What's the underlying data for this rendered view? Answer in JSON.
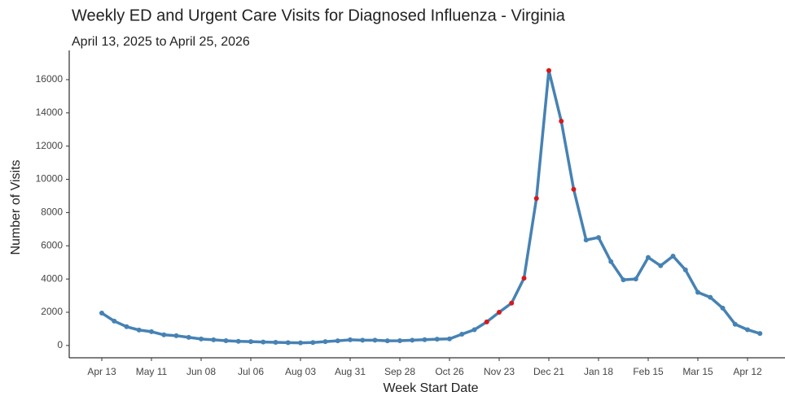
{
  "chart_data": {
    "type": "line",
    "title": "Weekly ED and Urgent Care Visits for Diagnosed Influenza - Virginia",
    "subtitle": "April 13, 2025 to April 25, 2026",
    "x_label": "Week Start Date",
    "y_label": "Number of Visits",
    "categories": [
      "Apr 13",
      null,
      null,
      null,
      "May 11",
      null,
      null,
      null,
      "Jun 08",
      null,
      null,
      null,
      "Jul 06",
      null,
      null,
      null,
      "Aug 03",
      null,
      null,
      null,
      "Aug 31",
      null,
      null,
      null,
      "Sep 28",
      null,
      null,
      null,
      "Oct 26",
      null,
      null,
      null,
      "Nov 23",
      null,
      null,
      null,
      "Dec 21",
      null,
      null,
      null,
      "Jan 18",
      null,
      null,
      null,
      "Feb 15",
      null,
      null,
      null,
      "Mar 15",
      null,
      null,
      null,
      "Apr 12",
      null
    ],
    "series": [
      {
        "name": "Visits",
        "color": "#4682b4",
        "values": [
          1950,
          1470,
          1130,
          930,
          830,
          640,
          590,
          490,
          390,
          340,
          290,
          250,
          230,
          210,
          190,
          170,
          160,
          180,
          230,
          280,
          340,
          320,
          320,
          280,
          290,
          320,
          350,
          380,
          400,
          680,
          950,
          1420,
          2000,
          2550,
          4050,
          8850,
          16550,
          13500,
          9400,
          6350,
          6500,
          5050,
          3950,
          4000,
          5300,
          4800,
          5380,
          4550,
          3200,
          2900,
          2250,
          1280,
          950,
          720
        ],
        "point_colors": [
          "#4682b4",
          "#4682b4",
          "#4682b4",
          "#4682b4",
          "#4682b4",
          "#4682b4",
          "#4682b4",
          "#4682b4",
          "#4682b4",
          "#4682b4",
          "#4682b4",
          "#4682b4",
          "#4682b4",
          "#4682b4",
          "#4682b4",
          "#4682b4",
          "#4682b4",
          "#4682b4",
          "#4682b4",
          "#4682b4",
          "#4682b4",
          "#4682b4",
          "#4682b4",
          "#4682b4",
          "#4682b4",
          "#4682b4",
          "#4682b4",
          "#4682b4",
          "#4682b4",
          "#4682b4",
          "#4682b4",
          "#d7191c",
          "#d7191c",
          "#d7191c",
          "#d7191c",
          "#d7191c",
          "#d7191c",
          "#d7191c",
          "#d7191c",
          "#4682b4",
          "#4682b4",
          "#4682b4",
          "#4682b4",
          "#4682b4",
          "#4682b4",
          "#4682b4",
          "#4682b4",
          "#4682b4",
          "#4682b4",
          "#4682b4",
          "#4682b4",
          "#4682b4",
          "#4682b4",
          "#4682b4"
        ]
      }
    ],
    "ylim": [
      -740,
      17760
    ],
    "yticks": [
      0,
      2000,
      4000,
      6000,
      8000,
      10000,
      12000,
      14000,
      16000
    ],
    "grid": false
  }
}
